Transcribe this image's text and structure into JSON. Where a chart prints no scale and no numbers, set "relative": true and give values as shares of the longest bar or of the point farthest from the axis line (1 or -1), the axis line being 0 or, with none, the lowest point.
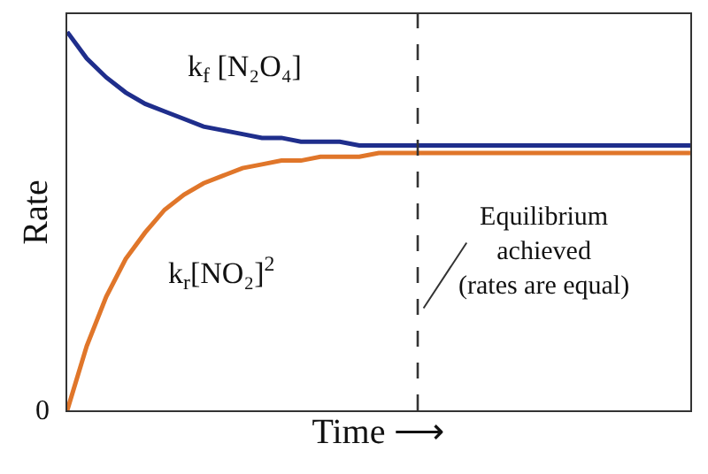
{
  "chart_data": {
    "type": "line",
    "relative": true,
    "xlabel": "Time ⟶",
    "ylabel": "Rate",
    "categories": [
      null,
      null,
      null,
      null,
      null,
      null,
      null,
      null,
      null,
      null,
      null,
      null,
      null,
      null,
      null,
      null,
      null,
      null,
      null,
      null,
      null,
      null,
      null,
      null,
      null,
      null,
      null,
      null,
      null,
      null,
      null,
      null,
      null
    ],
    "series": [
      {
        "name": "k$_{f}$ [N₂O₄]",
        "color": "#1f2e8c",
        "values": [
          1.0,
          0.93,
          0.88,
          0.84,
          0.81,
          0.79,
          0.77,
          0.75,
          0.74,
          0.73,
          0.72,
          0.72,
          0.71,
          0.71,
          0.71,
          0.7,
          0.7,
          0.7,
          0.7,
          0.7,
          0.7,
          0.7,
          0.7,
          0.7,
          0.7,
          0.7,
          0.7,
          0.7,
          0.7,
          0.7,
          0.7,
          0.7,
          0.7
        ]
      },
      {
        "name": "k$_{r}$[NO₂]$^{2}$",
        "color": "#e0762a",
        "values": [
          0.0,
          0.17,
          0.3,
          0.4,
          0.47,
          0.53,
          0.57,
          0.6,
          0.62,
          0.64,
          0.65,
          0.66,
          0.66,
          0.67,
          0.67,
          0.67,
          0.68,
          0.68,
          0.68,
          0.68,
          0.68,
          0.68,
          0.68,
          0.68,
          0.68,
          0.68,
          0.68,
          0.68,
          0.68,
          0.68,
          0.68,
          0.68,
          0.68
        ]
      }
    ],
    "annotations": [
      "Equilibrium\nachieved\n(rates are equal)",
      "0"
    ],
    "legend": false,
    "marker": "none",
    "line_style": "solid"
  }
}
